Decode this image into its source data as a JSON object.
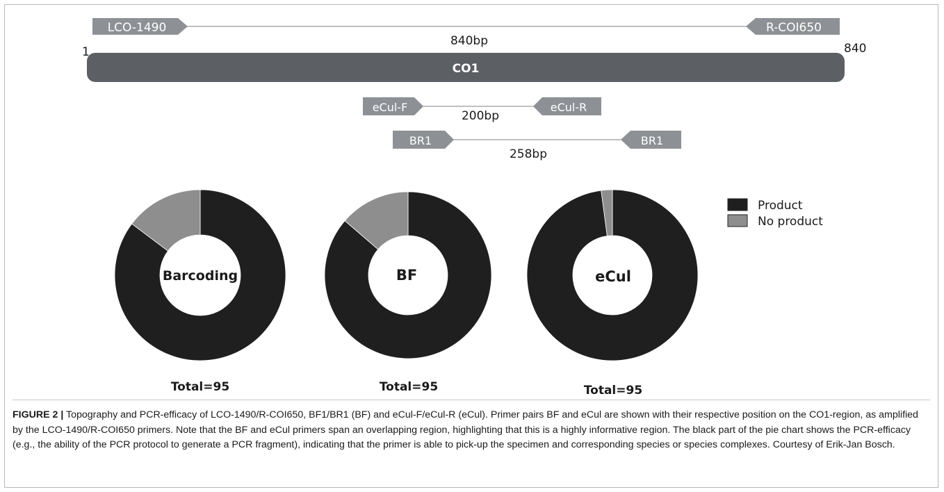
{
  "gene_map": {
    "region": {
      "label": "CO1",
      "start_label": "1",
      "end_label": "840"
    },
    "amplicons": [
      {
        "id": "lco",
        "forward": "LCO-1490",
        "reverse": "R-COI650",
        "length": "840bp"
      },
      {
        "id": "ecul",
        "forward": "eCul-F",
        "reverse": "eCul-R",
        "length": "200bp"
      },
      {
        "id": "br1",
        "forward": "BR1",
        "reverse": "BR1",
        "length": "258bp"
      }
    ]
  },
  "colors": {
    "product": "#1f1f1f",
    "no_product": "#8e8e8e",
    "gene_bar": "#5c5f63",
    "primer": "#8d9196",
    "line": "#9a9a9a"
  },
  "chart_data": [
    {
      "type": "pie",
      "center_label": "Barcoding",
      "footer": "Total=95",
      "categories": [
        "Product",
        "No product"
      ],
      "values": [
        81,
        14
      ]
    },
    {
      "type": "pie",
      "center_label": "BF",
      "footer": "Total=95",
      "categories": [
        "Product",
        "No product"
      ],
      "values": [
        82,
        13
      ]
    },
    {
      "type": "pie",
      "center_label": "eCul",
      "footer": "Total=95",
      "categories": [
        "Product",
        "No product"
      ],
      "values": [
        93,
        2
      ]
    }
  ],
  "legend": {
    "items": [
      {
        "label": "Product"
      },
      {
        "label": "No product"
      }
    ]
  },
  "caption": {
    "label": "FIGURE 2 |",
    "text": "Topography and PCR-efficacy of LCO-1490/R-COI650, BF1/BR1 (BF) and eCul-F/eCul-R (eCul). Primer pairs BF and eCul are shown with their respective position on the CO1-region, as amplified by the LCO-1490/R-COI650 primers. Note that the BF and eCul primers span an overlapping region, highlighting that this is a highly informative region. The black part of the pie chart shows the PCR-efficacy (e.g., the ability of the PCR protocol to generate a PCR fragment), indicating that the primer is able to pick-up the specimen and corresponding species or species complexes. Courtesy of Erik-Jan Bosch."
  }
}
